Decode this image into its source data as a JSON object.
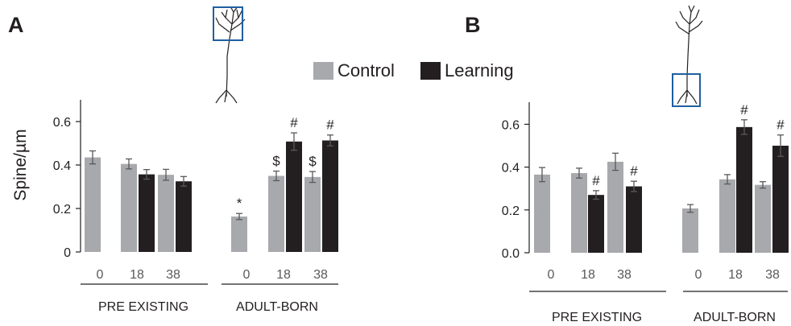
{
  "legend": {
    "control_label": "Control",
    "learning_label": "Learning"
  },
  "colors": {
    "control": "#a7a9ac",
    "learning": "#231f20",
    "inset_box": "#1f5fa0",
    "axis": "#231f20"
  },
  "chart_data": [
    {
      "panel": "A",
      "type": "bar",
      "ylabel": "Spine/µm",
      "ylim": [
        0,
        0.7
      ],
      "yticks": [
        "0",
        "0.2",
        "0.4",
        "0.6"
      ],
      "ytick_values": [
        0,
        0.2,
        0.4,
        0.6
      ],
      "groups": [
        "PRE EXISTING",
        "ADULT-BORN"
      ],
      "timepoints": [
        "0",
        "18",
        "38"
      ],
      "series": [
        {
          "name": "Control",
          "values": [
            0.435,
            0.405,
            0.355,
            0.163,
            0.35,
            0.345
          ],
          "errors": [
            0.03,
            0.023,
            0.025,
            0.014,
            0.022,
            0.025
          ]
        },
        {
          "name": "Learning",
          "values": [
            null,
            0.357,
            0.325,
            null,
            0.508,
            0.513
          ],
          "errors": [
            null,
            0.022,
            0.022,
            null,
            0.04,
            0.025
          ]
        }
      ],
      "annotations": [
        {
          "series": "Control",
          "index": 3,
          "text": "*"
        },
        {
          "series": "Control",
          "index": 4,
          "text": "$"
        },
        {
          "series": "Control",
          "index": 5,
          "text": "$"
        },
        {
          "series": "Learning",
          "index": 4,
          "text": "#"
        },
        {
          "series": "Learning",
          "index": 5,
          "text": "#"
        }
      ]
    },
    {
      "panel": "B",
      "type": "bar",
      "ylabel": "",
      "ylim": [
        0,
        0.7
      ],
      "yticks": [
        "0.0",
        "0.2",
        "0.4",
        "0.6"
      ],
      "ytick_values": [
        0,
        0.2,
        0.4,
        0.6
      ],
      "groups": [
        "PRE EXISTING",
        "ADULT-BORN"
      ],
      "timepoints": [
        "0",
        "18",
        "38"
      ],
      "series": [
        {
          "name": "Control",
          "values": [
            0.365,
            0.372,
            0.425,
            0.207,
            0.343,
            0.317
          ],
          "errors": [
            0.033,
            0.023,
            0.04,
            0.018,
            0.022,
            0.015
          ]
        },
        {
          "name": "Learning",
          "values": [
            null,
            0.27,
            0.31,
            null,
            0.587,
            0.5
          ],
          "errors": [
            null,
            0.02,
            0.024,
            null,
            0.034,
            0.05
          ]
        }
      ],
      "annotations": [
        {
          "series": "Learning",
          "index": 1,
          "text": "#"
        },
        {
          "series": "Learning",
          "index": 2,
          "text": "#"
        },
        {
          "series": "Learning",
          "index": 4,
          "text": "#"
        },
        {
          "series": "Learning",
          "index": 5,
          "text": "#"
        }
      ]
    }
  ]
}
